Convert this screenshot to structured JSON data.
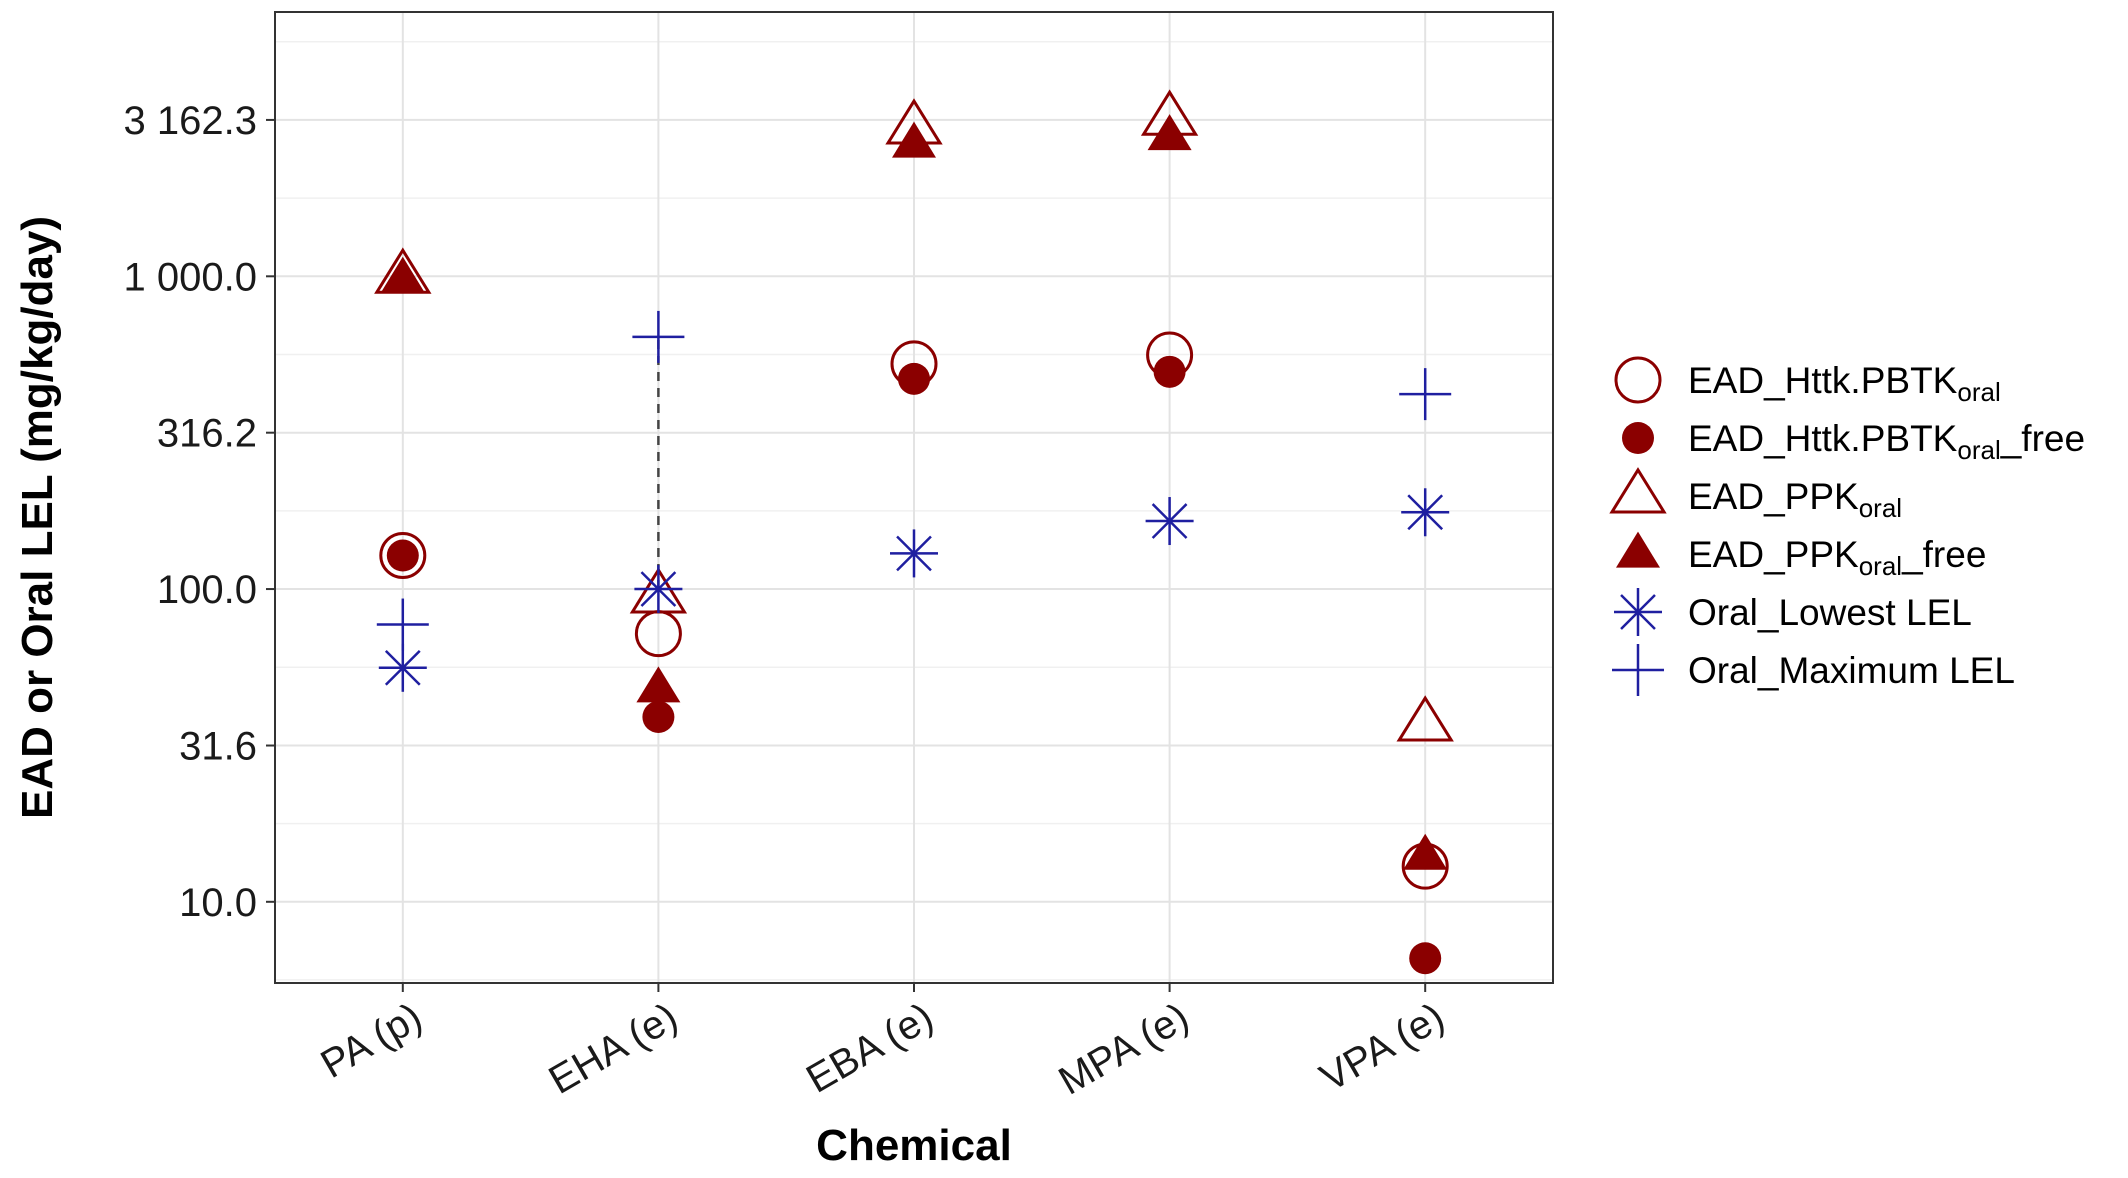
{
  "chart_data": {
    "type": "scatter",
    "xlabel": "Chemical",
    "ylabel": "EAD or Oral LEL (mg/kg/day)",
    "y_scale": "log10",
    "ylim": [
      5.5,
      7000
    ],
    "y_ticks": [
      10.0,
      31.6,
      100.0,
      316.2,
      1000.0,
      3162.3
    ],
    "y_tick_labels": [
      "10.0",
      "31.6",
      "100.0",
      "316.2",
      "1 000.0",
      "3 162.3"
    ],
    "grid": true,
    "legend_position": "right",
    "categories": [
      "PA (p)",
      "EHA (e)",
      "EBA (e)",
      "MPA (e)",
      "VPA (e)"
    ],
    "series": [
      {
        "name": "EAD_Httk.PBTK",
        "sub": "oral",
        "suffix": "",
        "marker": "circle-open",
        "color": "#8b0000",
        "values": [
          128,
          72,
          525,
          560,
          13
        ]
      },
      {
        "name": "EAD_Httk.PBTK",
        "sub": "oral",
        "suffix": "_free",
        "marker": "circle-filled",
        "color": "#8b0000",
        "values": [
          128,
          39,
          470,
          495,
          6.6
        ]
      },
      {
        "name": "EAD_PPK",
        "sub": "oral",
        "suffix": "",
        "marker": "triangle-open",
        "color": "#8b0000",
        "values": [
          1000,
          95,
          3000,
          3200,
          37
        ]
      },
      {
        "name": "EAD_PPK",
        "sub": "oral",
        "suffix": "_free",
        "marker": "triangle-filled",
        "color": "#8b0000",
        "values": [
          980,
          48,
          2650,
          2800,
          14
        ]
      },
      {
        "name": "Oral_Lowest LEL",
        "sub": "",
        "suffix": "",
        "marker": "asterisk",
        "color": "#1f1fa0",
        "values": [
          56,
          100,
          130,
          165,
          176
        ]
      },
      {
        "name": "Oral_Maximum LEL",
        "sub": "",
        "suffix": "",
        "marker": "plus",
        "color": "#1f1fa0",
        "values": [
          77,
          640,
          null,
          null,
          420
        ]
      }
    ],
    "range_lines": [
      {
        "category": "EHA (e)",
        "from": 100,
        "to": 640,
        "style": "dashed"
      }
    ]
  }
}
